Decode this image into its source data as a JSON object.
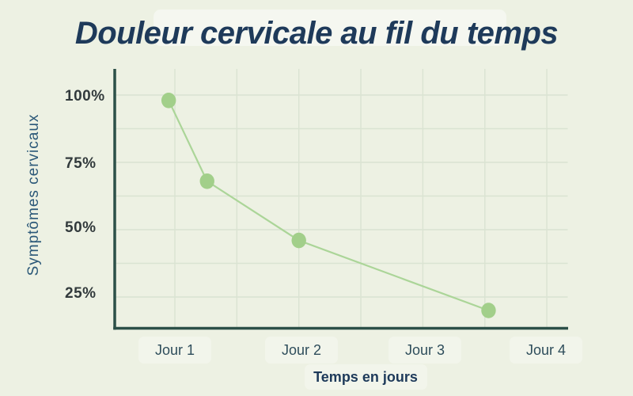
{
  "header": {
    "title": "Douleur cervicale au fil du temps"
  },
  "colors": {
    "background": "#edf1e3",
    "title": "#1e3a5a",
    "axis": "#2c5048",
    "grid": "#dae3d2",
    "line": "#abd598",
    "point": "#a2cf8a",
    "y_tick_text": "#323a3c",
    "x_tick_text": "#2e4d5b",
    "y_axis_title_text": "#2b5878"
  },
  "chart_data": {
    "type": "line",
    "title": "Douleur cervicale au fil du temps",
    "xlabel": "Temps en jours",
    "ylabel": "Symptômes cervicaux",
    "x_tick_labels": [
      "Jour 1",
      "Jour 2",
      "Jour 3",
      "Jour 4"
    ],
    "x_tick_days": [
      1,
      2,
      3,
      4
    ],
    "y_tick_labels": [
      "100%",
      "75%",
      "50%",
      "25%"
    ],
    "y_tick_values": [
      100,
      75,
      50,
      25
    ],
    "x_gridlines_days": [
      1,
      1.5,
      2,
      2.5,
      3,
      3.5,
      4
    ],
    "y_gridlines_pct": [
      100,
      87.5,
      75,
      62.5,
      50,
      37.5,
      25
    ],
    "xlim_days": [
      0.52,
      4.17
    ],
    "ylim_pct": [
      13,
      110
    ],
    "grid": true,
    "legend": false,
    "series": [
      {
        "name": "Symptômes cervicaux",
        "x_days": [
          0.95,
          1.26,
          2.0,
          3.53
        ],
        "values_pct": [
          98,
          68,
          46,
          20
        ]
      }
    ]
  }
}
